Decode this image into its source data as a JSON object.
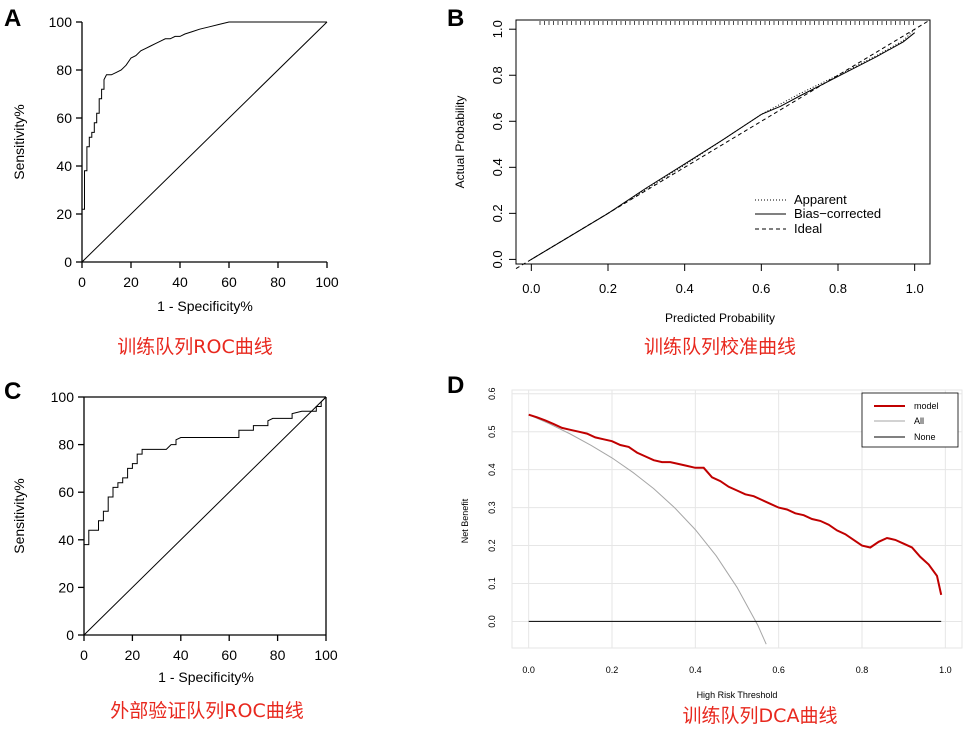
{
  "chart_data": [
    {
      "panel": "A",
      "type": "line",
      "caption": "训练队列ROC曲线",
      "xlabel": "1 - Specificity%",
      "ylabel": "Sensitivity%",
      "xlim": [
        0,
        100
      ],
      "ylim": [
        0,
        100
      ],
      "xticks": [
        "0",
        "20",
        "40",
        "60",
        "80",
        "100"
      ],
      "yticks": [
        "0",
        "20",
        "40",
        "60",
        "80",
        "100"
      ],
      "series": [
        {
          "x": [
            0,
            0,
            1,
            1,
            2,
            2,
            3,
            3,
            4,
            4,
            5,
            5,
            6,
            6,
            7,
            7,
            8,
            8,
            9,
            9,
            10,
            12,
            14,
            16,
            18,
            20,
            22,
            24,
            26,
            28,
            30,
            32,
            34,
            36,
            38,
            40,
            42,
            45,
            48,
            52,
            56,
            60,
            100
          ],
          "y": [
            0,
            22,
            22,
            38,
            38,
            48,
            48,
            52,
            52,
            54,
            54,
            58,
            58,
            62,
            62,
            68,
            68,
            72,
            72,
            76,
            78,
            78,
            79,
            80,
            82,
            85,
            86,
            88,
            89,
            90,
            91,
            92,
            93,
            93,
            94,
            94,
            95,
            96,
            97,
            98,
            99,
            100,
            100
          ]
        },
        {
          "x": [
            0,
            100
          ],
          "y": [
            0,
            100
          ]
        }
      ]
    },
    {
      "panel": "B",
      "type": "line",
      "caption": "训练队列校准曲线",
      "xlabel": "Predicted Probability",
      "ylabel": "Actual Probability",
      "xlim": [
        -0.04,
        1.04
      ],
      "ylim": [
        -0.02,
        1.04
      ],
      "xticks": [
        "0.0",
        "0.2",
        "0.4",
        "0.6",
        "0.8",
        "1.0"
      ],
      "yticks": [
        "0.0",
        "0.2",
        "0.4",
        "0.6",
        "0.8",
        "1.0"
      ],
      "legend": {
        "position": "bottom-right",
        "entries": [
          "Apparent",
          "Bias−corrected",
          "Ideal"
        ]
      },
      "series": [
        {
          "x": [
            0,
            0.1,
            0.2,
            0.3,
            0.4,
            0.5,
            0.6,
            0.7,
            0.8,
            0.9,
            0.97,
            1.0
          ],
          "y": [
            0,
            0.1,
            0.2,
            0.305,
            0.41,
            0.52,
            0.63,
            0.72,
            0.8,
            0.885,
            0.95,
            1.0
          ]
        },
        {
          "x": [
            0,
            0.1,
            0.2,
            0.3,
            0.4,
            0.5,
            0.6,
            0.65,
            0.7,
            0.8,
            0.9,
            0.97,
            1.0
          ],
          "y": [
            0,
            0.1,
            0.2,
            0.31,
            0.415,
            0.52,
            0.63,
            0.665,
            0.71,
            0.795,
            0.88,
            0.945,
            0.985
          ]
        },
        {
          "x": [
            -0.04,
            1.04
          ],
          "y": [
            -0.04,
            1.04
          ]
        }
      ]
    },
    {
      "panel": "C",
      "type": "line",
      "caption": "外部验证队列ROC曲线",
      "xlabel": "1 - Specificity%",
      "ylabel": "Sensitivity%",
      "xlim": [
        0,
        100
      ],
      "ylim": [
        0,
        100
      ],
      "xticks": [
        "0",
        "20",
        "40",
        "60",
        "80",
        "100"
      ],
      "yticks": [
        "0",
        "20",
        "40",
        "60",
        "80",
        "100"
      ],
      "series": [
        {
          "x": [
            0,
            0,
            2,
            2,
            6,
            6,
            8,
            8,
            10,
            10,
            12,
            12,
            14,
            14,
            16,
            16,
            18,
            18,
            20,
            20,
            22,
            22,
            24,
            24,
            26,
            30,
            34,
            36,
            38,
            38,
            40,
            64,
            64,
            66,
            70,
            70,
            76,
            76,
            78,
            86,
            86,
            90,
            96,
            96,
            98,
            98,
            100
          ],
          "y": [
            0,
            38,
            38,
            44,
            44,
            48,
            48,
            52,
            52,
            58,
            58,
            62,
            62,
            64,
            64,
            66,
            66,
            70,
            70,
            72,
            72,
            76,
            76,
            78,
            78,
            78,
            78,
            80,
            80,
            82,
            83,
            83,
            86,
            86,
            86,
            88,
            88,
            90,
            91,
            91,
            93,
            94,
            94,
            96,
            96,
            98,
            100
          ]
        },
        {
          "x": [
            0,
            100
          ],
          "y": [
            0,
            100
          ]
        }
      ]
    },
    {
      "panel": "D",
      "type": "line",
      "caption": "训练队列DCA曲线",
      "xlabel": "High Risk Threshold",
      "ylabel": "Net Benefit",
      "xlim": [
        -0.04,
        1.04
      ],
      "ylim": [
        -0.07,
        0.61
      ],
      "grid": true,
      "xticks": [
        "0.0",
        "0.2",
        "0.4",
        "0.6",
        "0.8",
        "1.0"
      ],
      "yticks": [
        "0.0",
        "0.1",
        "0.2",
        "0.3",
        "0.4",
        "0.5",
        "0.6"
      ],
      "legend": {
        "position": "top-right",
        "entries": [
          "model",
          "All",
          "None"
        ]
      },
      "series": [
        {
          "name": "model",
          "color": "#c00000",
          "x": [
            0.0,
            0.02,
            0.04,
            0.06,
            0.08,
            0.1,
            0.12,
            0.14,
            0.16,
            0.18,
            0.2,
            0.22,
            0.24,
            0.26,
            0.28,
            0.3,
            0.32,
            0.34,
            0.36,
            0.38,
            0.4,
            0.42,
            0.44,
            0.46,
            0.48,
            0.5,
            0.52,
            0.54,
            0.56,
            0.58,
            0.6,
            0.62,
            0.64,
            0.66,
            0.68,
            0.7,
            0.72,
            0.74,
            0.76,
            0.78,
            0.8,
            0.82,
            0.84,
            0.86,
            0.88,
            0.9,
            0.92,
            0.94,
            0.96,
            0.98,
            0.99
          ],
          "y": [
            0.545,
            0.538,
            0.53,
            0.52,
            0.51,
            0.505,
            0.5,
            0.495,
            0.485,
            0.48,
            0.475,
            0.465,
            0.46,
            0.445,
            0.435,
            0.425,
            0.42,
            0.42,
            0.415,
            0.41,
            0.405,
            0.405,
            0.38,
            0.37,
            0.355,
            0.345,
            0.335,
            0.33,
            0.32,
            0.31,
            0.3,
            0.295,
            0.285,
            0.28,
            0.27,
            0.265,
            0.255,
            0.24,
            0.23,
            0.215,
            0.2,
            0.195,
            0.21,
            0.22,
            0.215,
            0.205,
            0.195,
            0.17,
            0.15,
            0.12,
            0.07
          ]
        },
        {
          "name": "All",
          "color": "#a6a6a6",
          "x": [
            0.0,
            0.05,
            0.1,
            0.15,
            0.2,
            0.25,
            0.3,
            0.35,
            0.4,
            0.45,
            0.5,
            0.55,
            0.57
          ],
          "y": [
            0.545,
            0.521,
            0.494,
            0.464,
            0.431,
            0.393,
            0.35,
            0.3,
            0.242,
            0.173,
            0.09,
            -0.01,
            -0.06
          ]
        },
        {
          "name": "None",
          "color": "#000000",
          "x": [
            0.0,
            0.99
          ],
          "y": [
            0.0,
            0.0
          ]
        }
      ]
    }
  ]
}
